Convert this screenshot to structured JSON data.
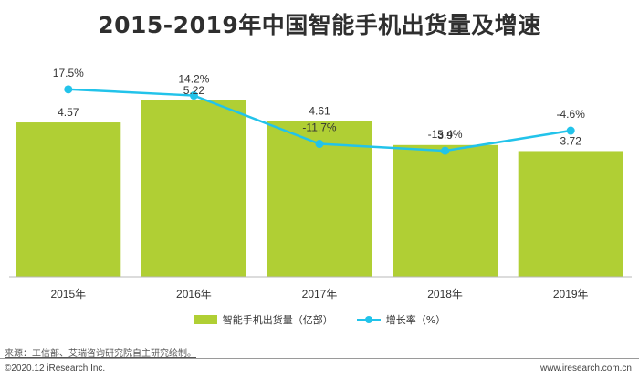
{
  "title": "2015-2019年中国智能手机出货量及增速",
  "chart_data": {
    "type": "bar+line",
    "title": "2015-2019年中国智能手机出货量及增速",
    "categories": [
      "2015年",
      "2016年",
      "2017年",
      "2018年",
      "2019年"
    ],
    "series": [
      {
        "name": "智能手机出货量（亿部）",
        "type": "bar",
        "values": [
          4.57,
          5.22,
          4.61,
          3.9,
          3.72
        ],
        "labels": [
          "4.57",
          "5.22",
          "4.61",
          "3.9",
          "3.72"
        ],
        "color": "#b0cf34"
      },
      {
        "name": "增长率（%）",
        "type": "line",
        "values": [
          17.5,
          14.2,
          -11.7,
          -15.4,
          -4.6
        ],
        "labels": [
          "17.5%",
          "14.2%",
          "-11.7%",
          "-15.4%",
          "-4.6%"
        ],
        "color": "#22c3ea"
      }
    ],
    "bar_ylim": [
      0,
      6.5
    ],
    "line_ylim": [
      -45,
      25
    ],
    "xlabel": "",
    "ylabel": "",
    "grid": false,
    "legend_position": "bottom"
  },
  "legend": {
    "bar_label": "智能手机出货量（亿部）",
    "line_label": "增长率（%）"
  },
  "footer": {
    "source": "来源：工信部、艾瑞咨询研究院自主研究绘制。",
    "copyright": "©2020.12 iResearch Inc.",
    "website": "www.iresearch.com.cn"
  }
}
